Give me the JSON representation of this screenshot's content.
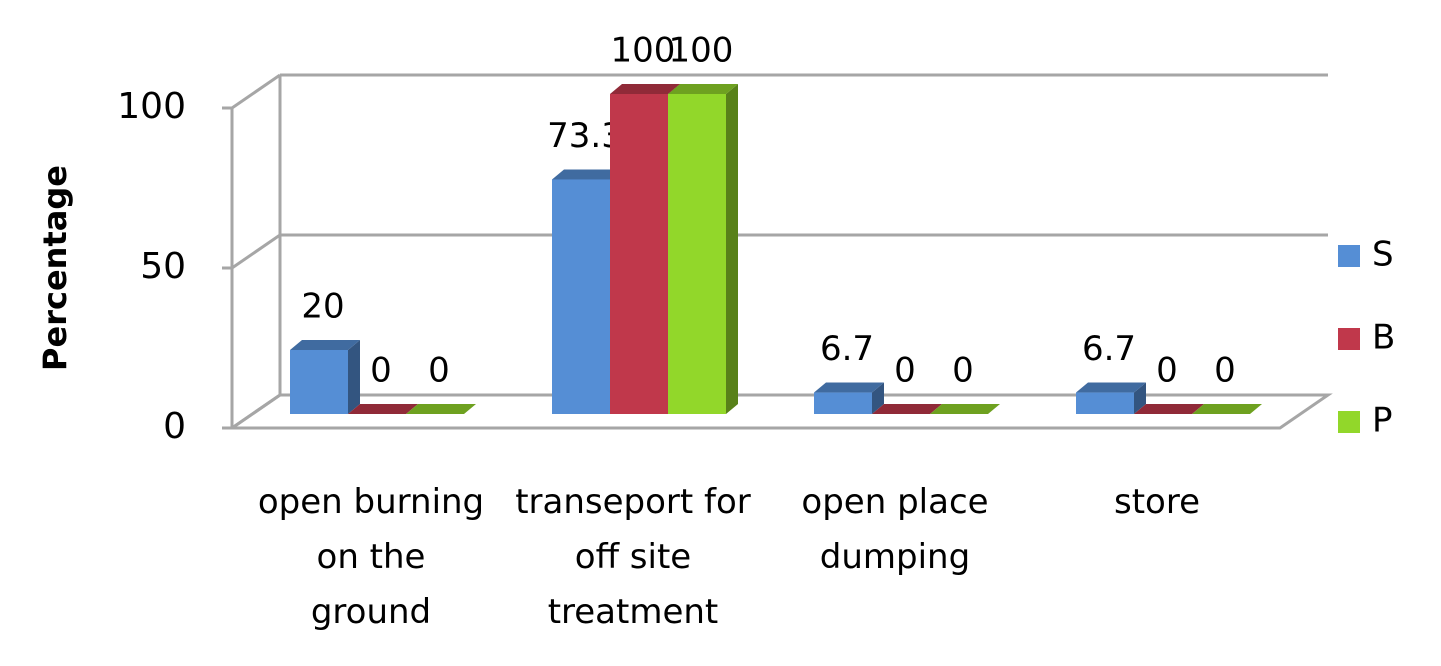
{
  "chart_data": {
    "type": "bar3d",
    "y_label": "Percentage",
    "categories": [
      "open burning on the ground",
      "transeport for off site treatment",
      "open place dumping",
      "store"
    ],
    "series": [
      {
        "name": "S",
        "color": "#558ed5",
        "values": [
          20,
          73.3,
          6.7,
          6.7
        ]
      },
      {
        "name": "B",
        "color": "#c0384b",
        "values": [
          0,
          100,
          0,
          0
        ]
      },
      {
        "name": "P",
        "color": "#92d72a",
        "values": [
          0,
          100,
          0,
          0
        ]
      }
    ],
    "ylim": [
      0,
      100
    ],
    "yticks": [
      0,
      50,
      100
    ],
    "grid": true,
    "legend": "right"
  }
}
